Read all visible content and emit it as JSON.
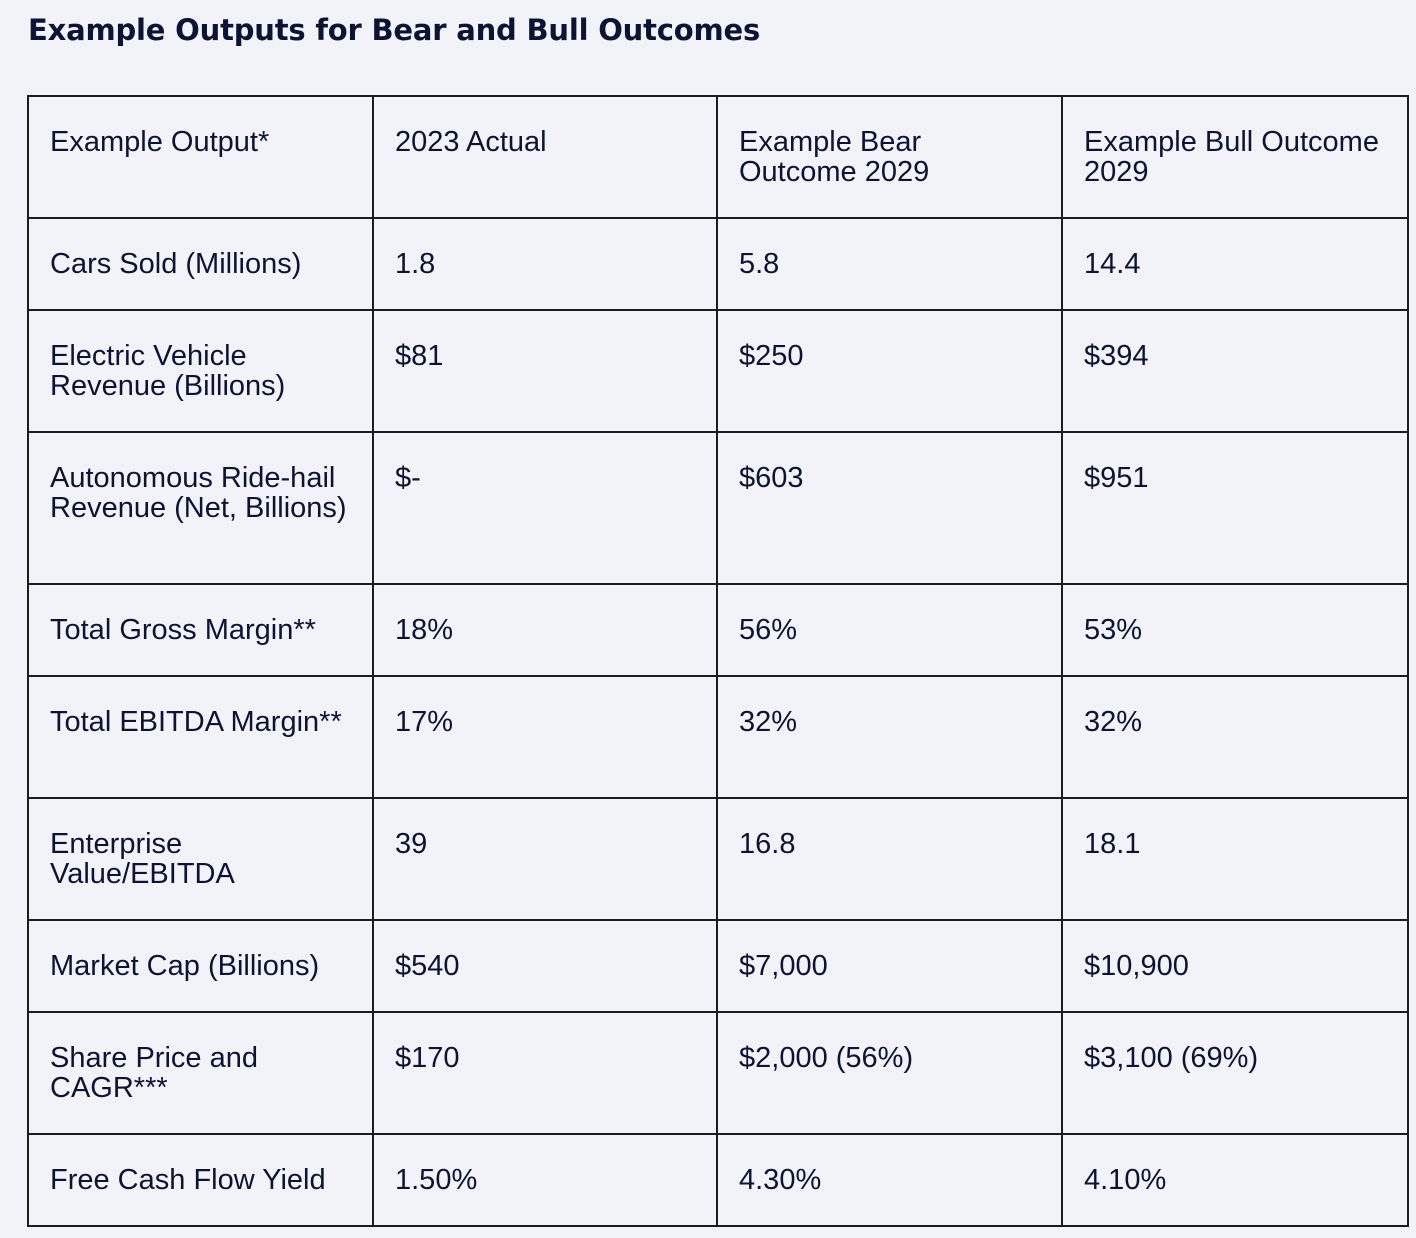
{
  "title": "Example Outputs for Bear and Bull Outcomes",
  "table": {
    "headers": [
      "Example Output*",
      "2023 Actual",
      "Example Bear Outcome 2029",
      "Example Bull Outcome 2029"
    ],
    "rows": [
      {
        "label": "Cars Sold (Millions)",
        "actual": "1.8",
        "bear": "5.8",
        "bull": "14.4"
      },
      {
        "label": "Electric Vehicle Revenue (Billions)",
        "actual": "$81",
        "bear": "$250",
        "bull": "$394"
      },
      {
        "label": "Autonomous Ride-hail Revenue (Net, Billions)",
        "actual": "$-",
        "bear": "$603",
        "bull": "$951"
      },
      {
        "label": "Total Gross Margin**",
        "actual": "18%",
        "bear": "56%",
        "bull": "53%"
      },
      {
        "label": "Total EBITDA Margin**",
        "actual": "17%",
        "bear": "32%",
        "bull": "32%"
      },
      {
        "label": "Enterprise Value/EBITDA",
        "actual": "39",
        "bear": "16.8",
        "bull": "18.1"
      },
      {
        "label": "Market Cap (Billions)",
        "actual": "$540",
        "bear": "$7,000",
        "bull": "$10,900"
      },
      {
        "label": "Share Price and CAGR***",
        "actual": "$170",
        "bear": "$2,000 (56%)",
        "bull": "$3,100 (69%)"
      },
      {
        "label": "Free Cash Flow Yield",
        "actual": "1.50%",
        "bear": "4.30%",
        "bull": "4.10%"
      }
    ]
  }
}
